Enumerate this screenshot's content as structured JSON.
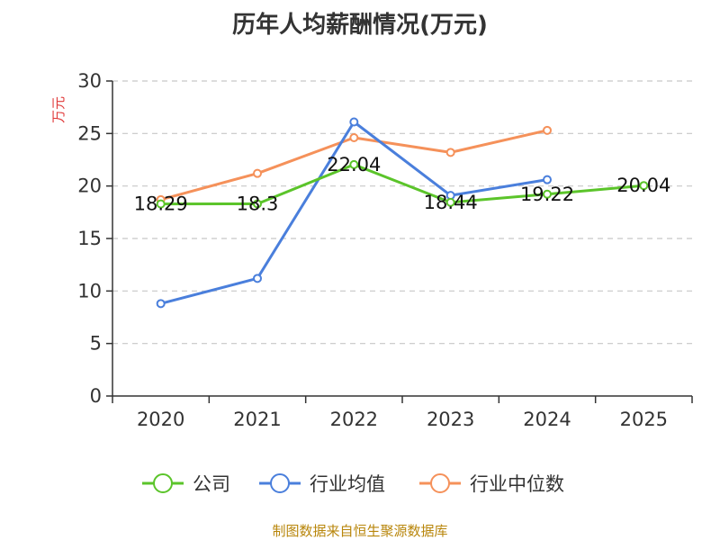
{
  "chart_data": {
    "type": "line",
    "title": "历年人均薪酬情况(万元)",
    "ylabel": "万元",
    "xlabel": "",
    "ylim": [
      0,
      30
    ],
    "yticks": [
      0,
      5,
      10,
      15,
      20,
      25,
      30
    ],
    "categories": [
      "2020",
      "2021",
      "2022",
      "2023",
      "2024",
      "2025"
    ],
    "grid": true,
    "legend_position": "bottom",
    "series": [
      {
        "name": "公司",
        "color": "#5bc42a",
        "values": [
          18.29,
          18.3,
          22.04,
          18.44,
          19.22,
          20.04
        ],
        "labels": [
          "18.29",
          "18.3",
          "22.04",
          "18.44",
          "19.22",
          "20.04"
        ]
      },
      {
        "name": "行业均值",
        "color": "#4a7fdc",
        "values": [
          8.8,
          11.2,
          26.1,
          19.1,
          20.6,
          null
        ]
      },
      {
        "name": "行业中位数",
        "color": "#f5915a",
        "values": [
          18.7,
          21.2,
          24.6,
          23.2,
          25.3,
          null
        ]
      }
    ],
    "source": "制图数据来自恒生聚源数据库"
  }
}
